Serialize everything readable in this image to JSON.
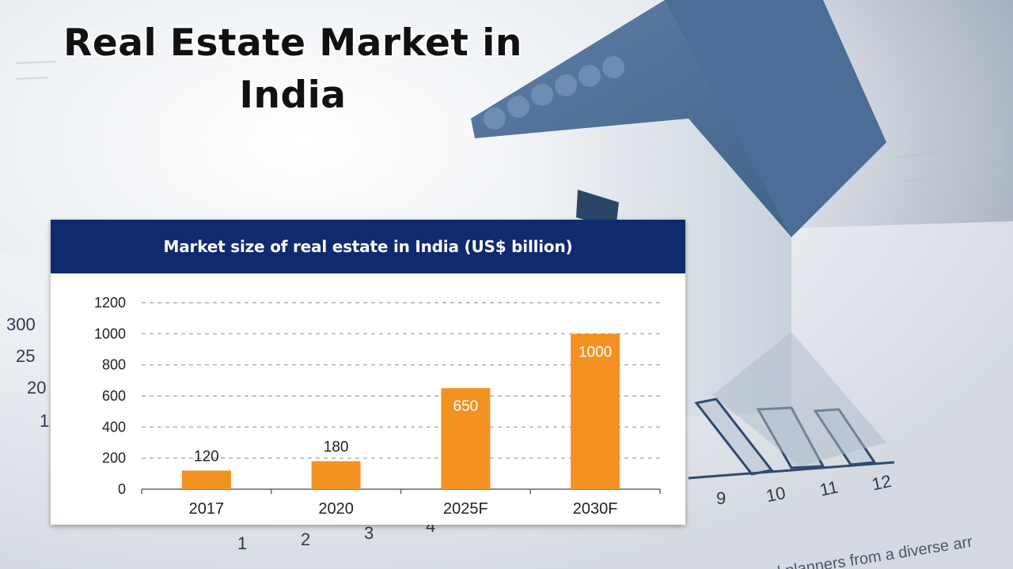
{
  "headline": {
    "line1": "Real Estate Market in",
    "line2": "India"
  },
  "background_axis": {
    "y_ticks": [
      "300",
      "25",
      "20",
      "1"
    ],
    "x_ticks": [
      "1",
      "2",
      "3",
      "4",
      "9",
      "10",
      "11",
      "12"
    ],
    "caption": "makers and planners from a diverse arr"
  },
  "chart_data": {
    "type": "bar",
    "title": "Market size of real estate in India (US$ billion)",
    "categories": [
      "2017",
      "2020",
      "2025F",
      "2030F"
    ],
    "values": [
      120,
      180,
      650,
      1000
    ],
    "data_labels": [
      "120",
      "180",
      "650",
      "1000"
    ],
    "ylim": [
      0,
      1200
    ],
    "yticks": [
      0,
      200,
      400,
      600,
      800,
      1000,
      1200
    ],
    "grid": true,
    "bar_color": "#f39221",
    "header_color": "#0f2a6e"
  }
}
